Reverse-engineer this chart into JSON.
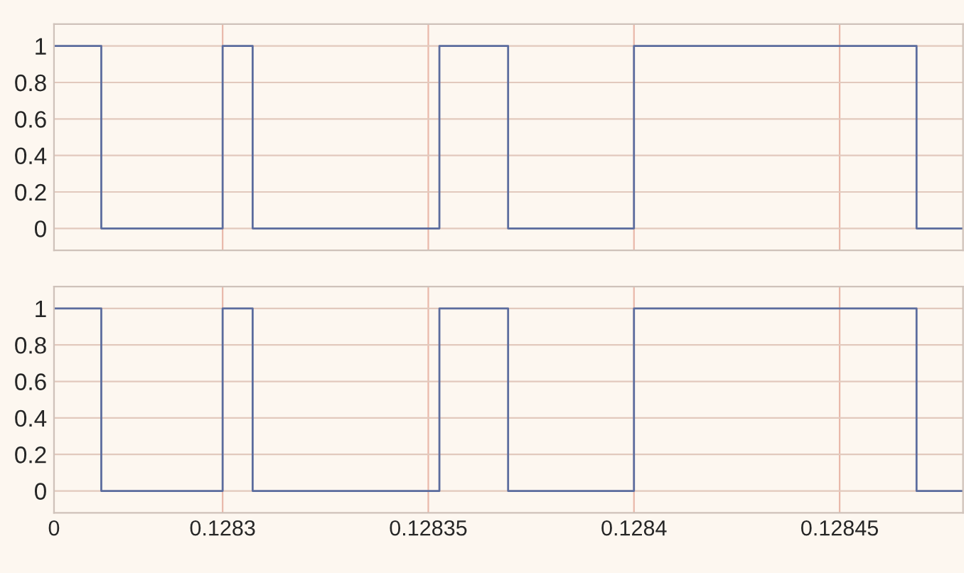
{
  "chart_data": [
    {
      "type": "step",
      "x": [
        0.128259,
        0.1282705,
        0.1283,
        0.1283073,
        0.1283527,
        0.1283694,
        0.1284,
        0.1284687,
        0.12848
      ],
      "series": [
        {
          "color": "#5b6c9e",
          "values": [
            1,
            0,
            1,
            0,
            1,
            0,
            1,
            0,
            0
          ]
        }
      ],
      "xlim": [
        0.128259,
        0.12848
      ],
      "xticks": [
        0.1283,
        0.12835,
        0.1284,
        0.12845
      ],
      "ylim": [
        -0.12,
        1.12
      ],
      "yticks": [
        0,
        0.2,
        0.4,
        0.6,
        0.8,
        1
      ],
      "grid": true,
      "tick_labels": "y"
    },
    {
      "type": "step",
      "x": [
        0.128259,
        0.1282705,
        0.1283,
        0.1283073,
        0.1283527,
        0.1283694,
        0.1284,
        0.1284687,
        0.12848
      ],
      "series": [
        {
          "color": "#5b6c9e",
          "values": [
            1,
            0,
            1,
            0,
            1,
            0,
            1,
            0,
            0
          ]
        }
      ],
      "xlim": [
        0.128259,
        0.12848
      ],
      "xticks": [
        {
          "value": 0.128259,
          "label": "0"
        },
        0.1283,
        0.12835,
        0.1284,
        0.12845
      ],
      "ylim": [
        -0.12,
        1.12
      ],
      "yticks": [
        0,
        0.2,
        0.4,
        0.6,
        0.8,
        1
      ],
      "grid": true
    }
  ]
}
